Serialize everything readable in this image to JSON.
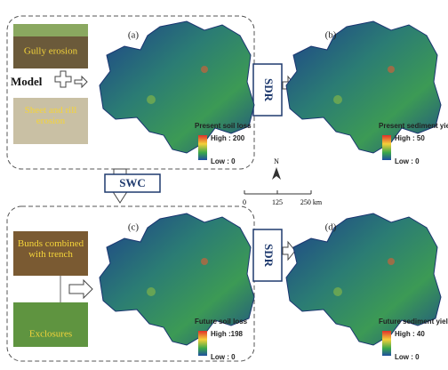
{
  "panels": [
    {
      "label": "(a)",
      "legend_title": "Present soil loss",
      "high": "High : 200",
      "low": "Low : 0"
    },
    {
      "label": "(b)",
      "legend_title": "Present sediment yield",
      "high": "High : 50",
      "low": "Low : 0"
    },
    {
      "label": "(c)",
      "legend_title": "Future soil loss",
      "high": "High :198",
      "low": "Low : 0"
    },
    {
      "label": "(d)",
      "legend_title": "Future sediment yield",
      "high": "High : 40",
      "low": "Low : 0"
    }
  ],
  "photos": [
    "Gully erosion",
    "Sheet and rill erosion",
    "Bunds combined with trench",
    "Exclosures"
  ],
  "model": "Model",
  "sdr": "SDR",
  "swc": "SWC",
  "north": "N",
  "scale": [
    "0",
    "125",
    "250 km"
  ]
}
